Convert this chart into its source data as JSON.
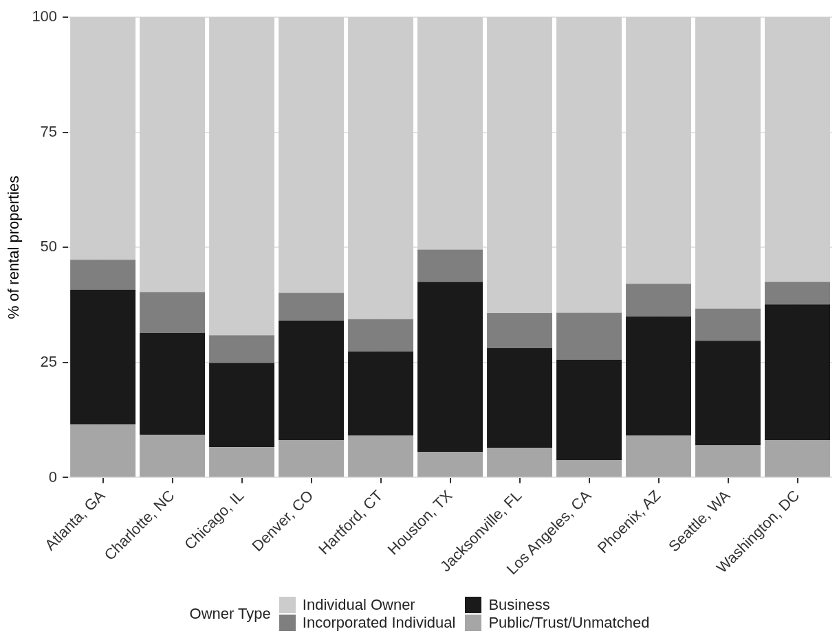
{
  "chart_data": {
    "type": "bar",
    "stacked": true,
    "categories": [
      "Atlanta, GA",
      "Charlotte, NC",
      "Chicago, IL",
      "Denver, CO",
      "Hartford, CT",
      "Houston, TX",
      "Jacksonville, FL",
      "Los Angeles, CA",
      "Phoenix, AZ",
      "Seattle, WA",
      "Washington, DC"
    ],
    "series": [
      {
        "name": "Public/Trust/Unmatched",
        "color": "#a6a6a6",
        "values": [
          11.5,
          9.3,
          6.6,
          8.1,
          9.1,
          5.6,
          6.5,
          3.8,
          9.1,
          7.0,
          8.1
        ]
      },
      {
        "name": "Business",
        "color": "#1a1a1a",
        "values": [
          29.3,
          22.1,
          18.3,
          26.0,
          18.3,
          36.9,
          21.6,
          21.8,
          25.9,
          22.7,
          29.5
        ]
      },
      {
        "name": "Incorporated Individual",
        "color": "#7f7f7f",
        "values": [
          6.5,
          8.9,
          6.0,
          6.0,
          7.0,
          7.0,
          7.6,
          10.2,
          7.1,
          7.0,
          4.9
        ]
      },
      {
        "name": "Individual Owner",
        "color": "#cccccc",
        "values": [
          52.7,
          59.7,
          69.1,
          59.9,
          65.6,
          50.5,
          64.3,
          64.2,
          57.9,
          63.3,
          57.5
        ]
      }
    ],
    "ylabel": "% of rental properties",
    "legend_title": "Owner Type",
    "legend": "bottom",
    "ylim": [
      0,
      100
    ],
    "yticks": [
      0,
      25,
      50,
      75,
      100
    ],
    "grid": true
  }
}
